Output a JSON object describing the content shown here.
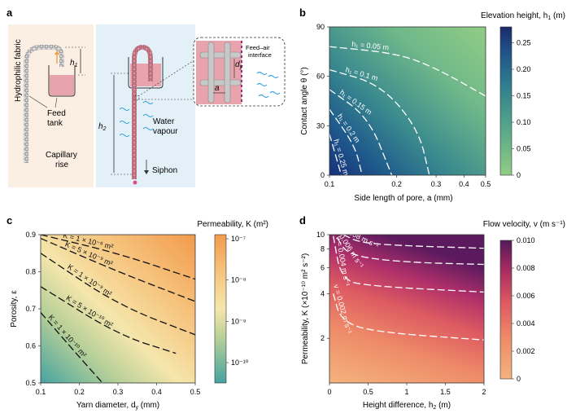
{
  "panels": {
    "a": {
      "label": "a",
      "texts": {
        "hydrophilic": "Hydrophilic fabric",
        "h1": "h",
        "h1_sub": "1",
        "feed_tank_1": "Feed",
        "feed_tank_2": "tank",
        "capillary_1": "Capillary",
        "capillary_2": "rise",
        "h2": "h",
        "h2_sub": "2",
        "water_1": "Water",
        "water_2": "vapour",
        "siphon": "Siphon",
        "dy": "d",
        "dy_sub": "y",
        "a": "a",
        "feed_air_1": "Feed–air",
        "feed_air_2": "interface"
      }
    },
    "b": {
      "label": "b"
    },
    "c": {
      "label": "c"
    },
    "d": {
      "label": "d"
    }
  },
  "chart_data": [
    {
      "panel": "b",
      "type": "heatmap",
      "colorbar_title": "Elevation height, h",
      "colorbar_title_sub": "1",
      "colorbar_title_unit": " (m)",
      "xlabel": "Side length of pore, a (mm)",
      "ylabel": "Contact angle θ (°)",
      "x_scale": "log",
      "xlim": [
        0.1,
        0.5
      ],
      "ylim": [
        0,
        90
      ],
      "xticks": [
        0.1,
        0.2,
        0.3,
        0.4,
        0.5
      ],
      "yticks": [
        0,
        30,
        60,
        90
      ],
      "cbar_ticks": [
        "0",
        "0.05",
        "0.10",
        "0.15",
        "0.20",
        "0.25"
      ],
      "cbar_range": [
        0,
        0.28
      ],
      "colors": [
        "#8fcb83",
        "#5aa98a",
        "#2f7f8e",
        "#1f5a8c",
        "#1a2f6e"
      ],
      "contours": [
        {
          "label": "h₁ = 0.05 m",
          "points": [
            [
              0.1,
              78
            ],
            [
              0.2,
              74
            ],
            [
              0.3,
              65
            ],
            [
              0.5,
              48
            ]
          ]
        },
        {
          "label": "h₁ = 0.1 m",
          "points": [
            [
              0.1,
              64
            ],
            [
              0.17,
              55
            ],
            [
              0.25,
              28
            ],
            [
              0.28,
              0
            ]
          ]
        },
        {
          "label": "h₁ = 0.15 m",
          "points": [
            [
              0.1,
              52
            ],
            [
              0.15,
              35
            ],
            [
              0.19,
              0
            ]
          ]
        },
        {
          "label": "h₁ = 0.2 m",
          "points": [
            [
              0.1,
              40
            ],
            [
              0.13,
              18
            ],
            [
              0.14,
              0
            ]
          ]
        },
        {
          "label": "h₁ = 0.25 m",
          "points": [
            [
              0.1,
              25
            ],
            [
              0.113,
              0
            ]
          ]
        }
      ]
    },
    {
      "panel": "c",
      "type": "heatmap",
      "colorbar_title": "Permeability, K (m²)",
      "xlabel": "Yarn diameter, d",
      "xlabel_sub": "y",
      "xlabel_unit": " (mm)",
      "ylabel": "Porosity, ε",
      "xlim": [
        0.1,
        0.5
      ],
      "ylim": [
        0.5,
        0.9
      ],
      "xticks": [
        0.1,
        0.2,
        0.3,
        0.4,
        0.5
      ],
      "yticks": [
        0.5,
        0.6,
        0.7,
        0.8,
        0.9
      ],
      "cbar_ticks": [
        "10⁻⁷",
        "10⁻⁸",
        "10⁻⁹",
        "10⁻¹⁰"
      ],
      "colors": [
        "#4aa7a0",
        "#b9cf9a",
        "#f4e3a8",
        "#f7c07a",
        "#f39a4f"
      ],
      "contours": [
        {
          "label": "K = 1 × 10⁻⁸ m²",
          "points": [
            [
              0.1,
              0.9
            ],
            [
              0.3,
              0.85
            ],
            [
              0.5,
              0.78
            ]
          ]
        },
        {
          "label": "K = 5 × 10⁻⁹ m²",
          "points": [
            [
              0.1,
              0.89
            ],
            [
              0.3,
              0.8
            ],
            [
              0.5,
              0.72
            ]
          ]
        },
        {
          "label": "K = 1 × 10⁻⁹ m²",
          "points": [
            [
              0.1,
              0.85
            ],
            [
              0.3,
              0.71
            ],
            [
              0.5,
              0.63
            ]
          ]
        },
        {
          "label": "K = 5 × 10⁻¹⁰ m²",
          "points": [
            [
              0.1,
              0.76
            ],
            [
              0.3,
              0.63
            ],
            [
              0.45,
              0.58
            ]
          ]
        },
        {
          "label": "K = 1 × 10⁻¹⁰ m²",
          "points": [
            [
              0.1,
              0.69
            ],
            [
              0.2,
              0.57
            ],
            [
              0.26,
              0.5
            ]
          ]
        }
      ]
    },
    {
      "panel": "d",
      "type": "heatmap",
      "colorbar_title": "Flow velocity, v (m s⁻¹)",
      "xlabel": "Height difference, h",
      "xlabel_sub": "2",
      "xlabel_unit": " (m)",
      "ylabel": "Permeability, K (×10⁻¹⁰ m² s⁻²)",
      "y_scale": "log",
      "xlim": [
        0,
        2.0
      ],
      "ylim": [
        1,
        10
      ],
      "xticks": [
        0,
        0.5,
        1.0,
        1.5,
        2.0
      ],
      "yticks": [
        2,
        4,
        6,
        8,
        10
      ],
      "cbar_ticks": [
        "0.010",
        "0.008",
        "0.006",
        "0.004",
        "0.002",
        "0"
      ],
      "colors": [
        "#f4b27c",
        "#ec7f67",
        "#d84a60",
        "#a32a62",
        "#5a1a5c"
      ],
      "contours": [
        {
          "label": "v = 0.008 m s⁻¹",
          "points": [
            [
              0.18,
              10
            ],
            [
              0.4,
              8.8
            ],
            [
              1.0,
              8.4
            ],
            [
              2.0,
              8.1
            ]
          ]
        },
        {
          "label": "v = 0.006 m s⁻¹",
          "points": [
            [
              0.1,
              9.5
            ],
            [
              0.25,
              7.2
            ],
            [
              1.0,
              6.5
            ],
            [
              2.0,
              6.3
            ]
          ]
        },
        {
          "label": "v = 0.004 m s⁻¹",
          "points": [
            [
              0.05,
              9.8
            ],
            [
              0.15,
              5
            ],
            [
              0.5,
              4.5
            ],
            [
              2.0,
              4.1
            ]
          ]
        },
        {
          "label": "v = 0.002 m s⁻¹",
          "points": [
            [
              0.05,
              4
            ],
            [
              0.15,
              2.6
            ],
            [
              0.6,
              2.2
            ],
            [
              2.0,
              1.95
            ]
          ]
        }
      ]
    }
  ]
}
